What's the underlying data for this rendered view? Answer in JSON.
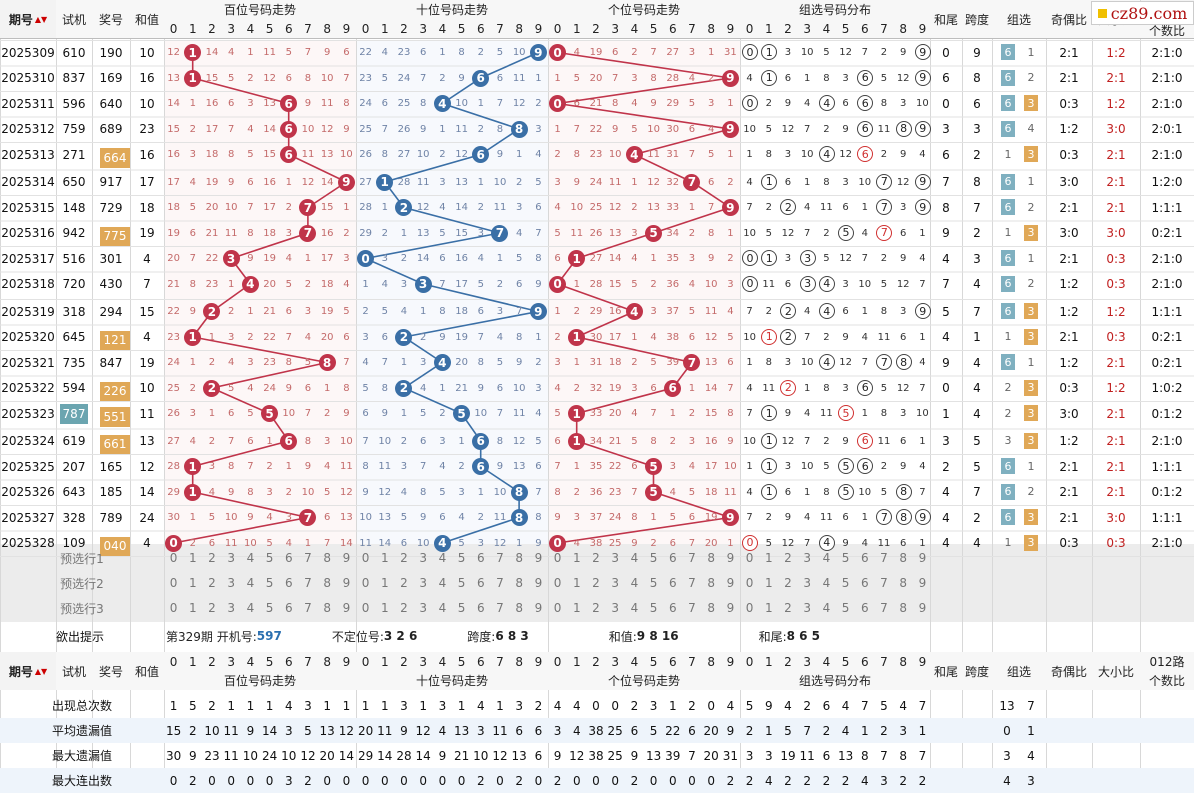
{
  "headers": {
    "period": "期号",
    "trial": "试机",
    "award": "奖号",
    "sum": "和值",
    "hundred": "百位号码走势",
    "ten": "十位号码走势",
    "unit": "个位号码走势",
    "group_dist": "组选号码分布",
    "tail": "和尾",
    "span": "跨度",
    "group": "组选",
    "odd_even": "奇偶比",
    "big_small": "大小比",
    "road012": "012路个数比",
    "road012_line1": "012路",
    "road012_line2": "个数比"
  },
  "sort_arrow": "▲▼",
  "logo": "cz89.com",
  "digits": [
    "0",
    "1",
    "2",
    "3",
    "4",
    "5",
    "6",
    "7",
    "8",
    "9"
  ],
  "rows": [
    {
      "period": "2025309",
      "trial": "610",
      "award": "190",
      "sum": "10",
      "h": "1",
      "t": "9",
      "u": "0",
      "tail": "0",
      "span": "9",
      "g6": "6",
      "g3": "1",
      "oe": "2:1",
      "bs": "1:2",
      "r012": "2:1:0"
    },
    {
      "period": "2025310",
      "trial": "837",
      "award": "169",
      "sum": "16",
      "h": "1",
      "t": "6",
      "u": "9",
      "tail": "6",
      "span": "8",
      "g6": "6",
      "g3": "2",
      "oe": "2:1",
      "bs": "2:1",
      "r012": "2:1:0"
    },
    {
      "period": "2025311",
      "trial": "596",
      "award": "640",
      "sum": "10",
      "h": "6",
      "t": "4",
      "u": "0",
      "tail": "0",
      "span": "6",
      "g6": "6",
      "g3": "3",
      "oe": "0:3",
      "bs": "1:2",
      "r012": "2:1:0"
    },
    {
      "period": "2025312",
      "trial": "759",
      "award": "689",
      "sum": "23",
      "h": "6",
      "t": "8",
      "u": "9",
      "tail": "3",
      "span": "3",
      "g6": "6",
      "g3": "4",
      "oe": "1:2",
      "bs": "3:0",
      "r012": "2:0:1"
    },
    {
      "period": "2025313",
      "trial": "271",
      "award": "664",
      "sum": "16",
      "h": "6",
      "t": "6",
      "u": "4",
      "tail": "6",
      "span": "2",
      "g6": "1",
      "g3": "3",
      "oe": "0:3",
      "bs": "2:1",
      "r012": "2:1:0"
    },
    {
      "period": "2025314",
      "trial": "650",
      "award": "917",
      "sum": "17",
      "h": "9",
      "t": "1",
      "u": "7",
      "tail": "7",
      "span": "8",
      "g6": "6",
      "g3": "1",
      "oe": "3:0",
      "bs": "2:1",
      "r012": "1:2:0"
    },
    {
      "period": "2025315",
      "trial": "148",
      "award": "729",
      "sum": "18",
      "h": "7",
      "t": "2",
      "u": "9",
      "tail": "8",
      "span": "7",
      "g6": "6",
      "g3": "2",
      "oe": "2:1",
      "bs": "2:1",
      "r012": "1:1:1"
    },
    {
      "period": "2025316",
      "trial": "942",
      "award": "775",
      "sum": "19",
      "h": "7",
      "t": "7",
      "u": "5",
      "tail": "9",
      "span": "2",
      "g6": "1",
      "g3": "3",
      "oe": "3:0",
      "bs": "3:0",
      "r012": "0:2:1"
    },
    {
      "period": "2025317",
      "trial": "516",
      "award": "301",
      "sum": "4",
      "h": "3",
      "t": "0",
      "u": "1",
      "tail": "4",
      "span": "3",
      "g6": "6",
      "g3": "1",
      "oe": "2:1",
      "bs": "0:3",
      "r012": "2:1:0"
    },
    {
      "period": "2025318",
      "trial": "720",
      "award": "430",
      "sum": "7",
      "h": "4",
      "t": "3",
      "u": "0",
      "tail": "7",
      "span": "4",
      "g6": "6",
      "g3": "2",
      "oe": "1:2",
      "bs": "0:3",
      "r012": "2:1:0"
    },
    {
      "period": "2025319",
      "trial": "318",
      "award": "294",
      "sum": "15",
      "h": "2",
      "t": "9",
      "u": "4",
      "tail": "5",
      "span": "7",
      "g6": "6",
      "g3": "3",
      "oe": "1:2",
      "bs": "1:2",
      "r012": "1:1:1"
    },
    {
      "period": "2025320",
      "trial": "645",
      "award": "121",
      "sum": "4",
      "h": "1",
      "t": "2",
      "u": "1",
      "tail": "4",
      "span": "1",
      "g6": "1",
      "g3": "3",
      "oe": "2:1",
      "bs": "0:3",
      "r012": "0:2:1"
    },
    {
      "period": "2025321",
      "trial": "735",
      "award": "847",
      "sum": "19",
      "h": "8",
      "t": "4",
      "u": "7",
      "tail": "9",
      "span": "4",
      "g6": "6",
      "g3": "1",
      "oe": "1:2",
      "bs": "2:1",
      "r012": "0:2:1"
    },
    {
      "period": "2025322",
      "trial": "594",
      "award": "226",
      "sum": "10",
      "h": "2",
      "t": "2",
      "u": "6",
      "tail": "0",
      "span": "4",
      "g6": "2",
      "g3": "3",
      "oe": "0:3",
      "bs": "1:2",
      "r012": "1:0:2"
    },
    {
      "period": "2025323",
      "trial": "787",
      "award": "551",
      "sum": "11",
      "h": "5",
      "t": "5",
      "u": "1",
      "tail": "1",
      "span": "4",
      "g6": "2",
      "g3": "3",
      "oe": "3:0",
      "bs": "2:1",
      "r012": "0:1:2"
    },
    {
      "period": "2025324",
      "trial": "619",
      "award": "661",
      "sum": "13",
      "h": "6",
      "t": "6",
      "u": "1",
      "tail": "3",
      "span": "5",
      "g6": "3",
      "g3": "3",
      "oe": "1:2",
      "bs": "2:1",
      "r012": "2:1:0"
    },
    {
      "period": "2025325",
      "trial": "207",
      "award": "165",
      "sum": "12",
      "h": "1",
      "t": "6",
      "u": "5",
      "tail": "2",
      "span": "5",
      "g6": "6",
      "g3": "1",
      "oe": "2:1",
      "bs": "2:1",
      "r012": "1:1:1"
    },
    {
      "period": "2025326",
      "trial": "643",
      "award": "185",
      "sum": "14",
      "h": "1",
      "t": "8",
      "u": "5",
      "tail": "4",
      "span": "7",
      "g6": "6",
      "g3": "2",
      "oe": "2:1",
      "bs": "2:1",
      "r012": "0:1:2"
    },
    {
      "period": "2025327",
      "trial": "328",
      "award": "789",
      "sum": "24",
      "h": "7",
      "t": "8",
      "u": "9",
      "tail": "4",
      "span": "2",
      "g6": "6",
      "g3": "3",
      "oe": "2:1",
      "bs": "3:0",
      "r012": "1:1:1"
    },
    {
      "period": "2025328",
      "trial": "109",
      "award": "040",
      "sum": "4",
      "h": "0",
      "t": "4",
      "u": "0",
      "tail": "4",
      "span": "4",
      "g6": "1",
      "g3": "3",
      "oe": "0:3",
      "bs": "0:3",
      "r012": "2:1:0"
    }
  ],
  "presel": [
    "预选行1",
    "预选行2",
    "预选行3"
  ],
  "hint": {
    "label": "欲出提示",
    "period_text": "第329期",
    "trial_label": "开机号:",
    "trial": "597",
    "pos_label": "不定位号:",
    "pos": "3 2 6",
    "span_label": "跨度:",
    "span": "6 8 3",
    "sum_label": "和值:",
    "sum": "9 8 16",
    "tail_label": "和尾:",
    "tail": "8 6 5"
  },
  "stats": [
    {
      "label": "出现总次数",
      "h": [
        "1",
        "5",
        "2",
        "1",
        "1",
        "1",
        "4",
        "3",
        "1",
        "1"
      ],
      "t": [
        "1",
        "1",
        "3",
        "1",
        "3",
        "1",
        "4",
        "1",
        "3",
        "2"
      ],
      "u": [
        "4",
        "4",
        "0",
        "0",
        "2",
        "3",
        "1",
        "2",
        "0",
        "4"
      ],
      "g": [
        "5",
        "9",
        "4",
        "2",
        "6",
        "4",
        "7",
        "5",
        "4",
        "7"
      ],
      "grp": [
        "13",
        "7"
      ]
    },
    {
      "label": "平均遗漏值",
      "h": [
        "15",
        "2",
        "10",
        "11",
        "9",
        "14",
        "3",
        "5",
        "13",
        "12"
      ],
      "t": [
        "20",
        "11",
        "9",
        "12",
        "4",
        "13",
        "3",
        "11",
        "6",
        "6"
      ],
      "u": [
        "3",
        "4",
        "38",
        "25",
        "6",
        "5",
        "22",
        "6",
        "20",
        "9"
      ],
      "g": [
        "2",
        "1",
        "5",
        "7",
        "2",
        "4",
        "1",
        "2",
        "3",
        "1"
      ],
      "grp": [
        "0",
        "1"
      ]
    },
    {
      "label": "最大遗漏值",
      "h": [
        "30",
        "9",
        "23",
        "11",
        "10",
        "24",
        "10",
        "12",
        "20",
        "14"
      ],
      "t": [
        "29",
        "14",
        "28",
        "14",
        "9",
        "21",
        "10",
        "12",
        "13",
        "6"
      ],
      "u": [
        "9",
        "12",
        "38",
        "25",
        "9",
        "13",
        "39",
        "7",
        "20",
        "31"
      ],
      "g": [
        "3",
        "3",
        "19",
        "11",
        "6",
        "13",
        "8",
        "7",
        "8",
        "7"
      ],
      "grp": [
        "3",
        "4"
      ]
    },
    {
      "label": "最大连出数",
      "h": [
        "0",
        "2",
        "0",
        "0",
        "0",
        "0",
        "3",
        "2",
        "0",
        "0"
      ],
      "t": [
        "0",
        "0",
        "0",
        "0",
        "0",
        "0",
        "2",
        "0",
        "2",
        "0"
      ],
      "u": [
        "2",
        "0",
        "0",
        "0",
        "2",
        "0",
        "0",
        "0",
        "0",
        "2"
      ],
      "g": [
        "2",
        "4",
        "2",
        "2",
        "2",
        "2",
        "4",
        "3",
        "2",
        "2"
      ],
      "grp": [
        "4",
        "3"
      ]
    }
  ],
  "colors": {
    "hundred": "#c0344a",
    "ten": "#3a6fa6",
    "unit": "#c0344a",
    "tag_six": "#7fb0c0",
    "tag_three": "#e0a857"
  }
}
